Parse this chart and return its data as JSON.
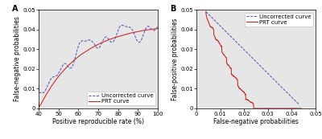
{
  "panel_A": {
    "label": "A",
    "xlabel": "Positive reproducible rate (%)",
    "ylabel": "False-negative probabilities",
    "xlim": [
      40,
      100
    ],
    "ylim": [
      0,
      0.05
    ],
    "xticks": [
      40,
      50,
      60,
      70,
      80,
      90,
      100
    ],
    "yticks": [
      0,
      0.01,
      0.02,
      0.03,
      0.04,
      0.05
    ],
    "uncorrected_color": "#5555bb",
    "prt_color": "#cc2222",
    "bg_color": "#e6e6e6",
    "legend_loc": "lower right"
  },
  "panel_B": {
    "label": "B",
    "xlabel": "False-negative probabilities",
    "ylabel": "False-positive probabilities",
    "xlim": [
      0,
      0.05
    ],
    "ylim": [
      0,
      0.05
    ],
    "xticks": [
      0,
      0.01,
      0.02,
      0.03,
      0.04,
      0.05
    ],
    "yticks": [
      0,
      0.01,
      0.02,
      0.03,
      0.04,
      0.05
    ],
    "uncorrected_color": "#5555bb",
    "prt_color": "#cc2222",
    "bg_color": "#e6e6e6",
    "legend_loc": "upper right"
  },
  "legend_uncorrected": "Uncorrected curve",
  "legend_prt": "PRT curve",
  "fontsize_label": 5.5,
  "fontsize_tick": 5.0,
  "fontsize_legend": 5.0,
  "fontsize_panel": 7.0
}
